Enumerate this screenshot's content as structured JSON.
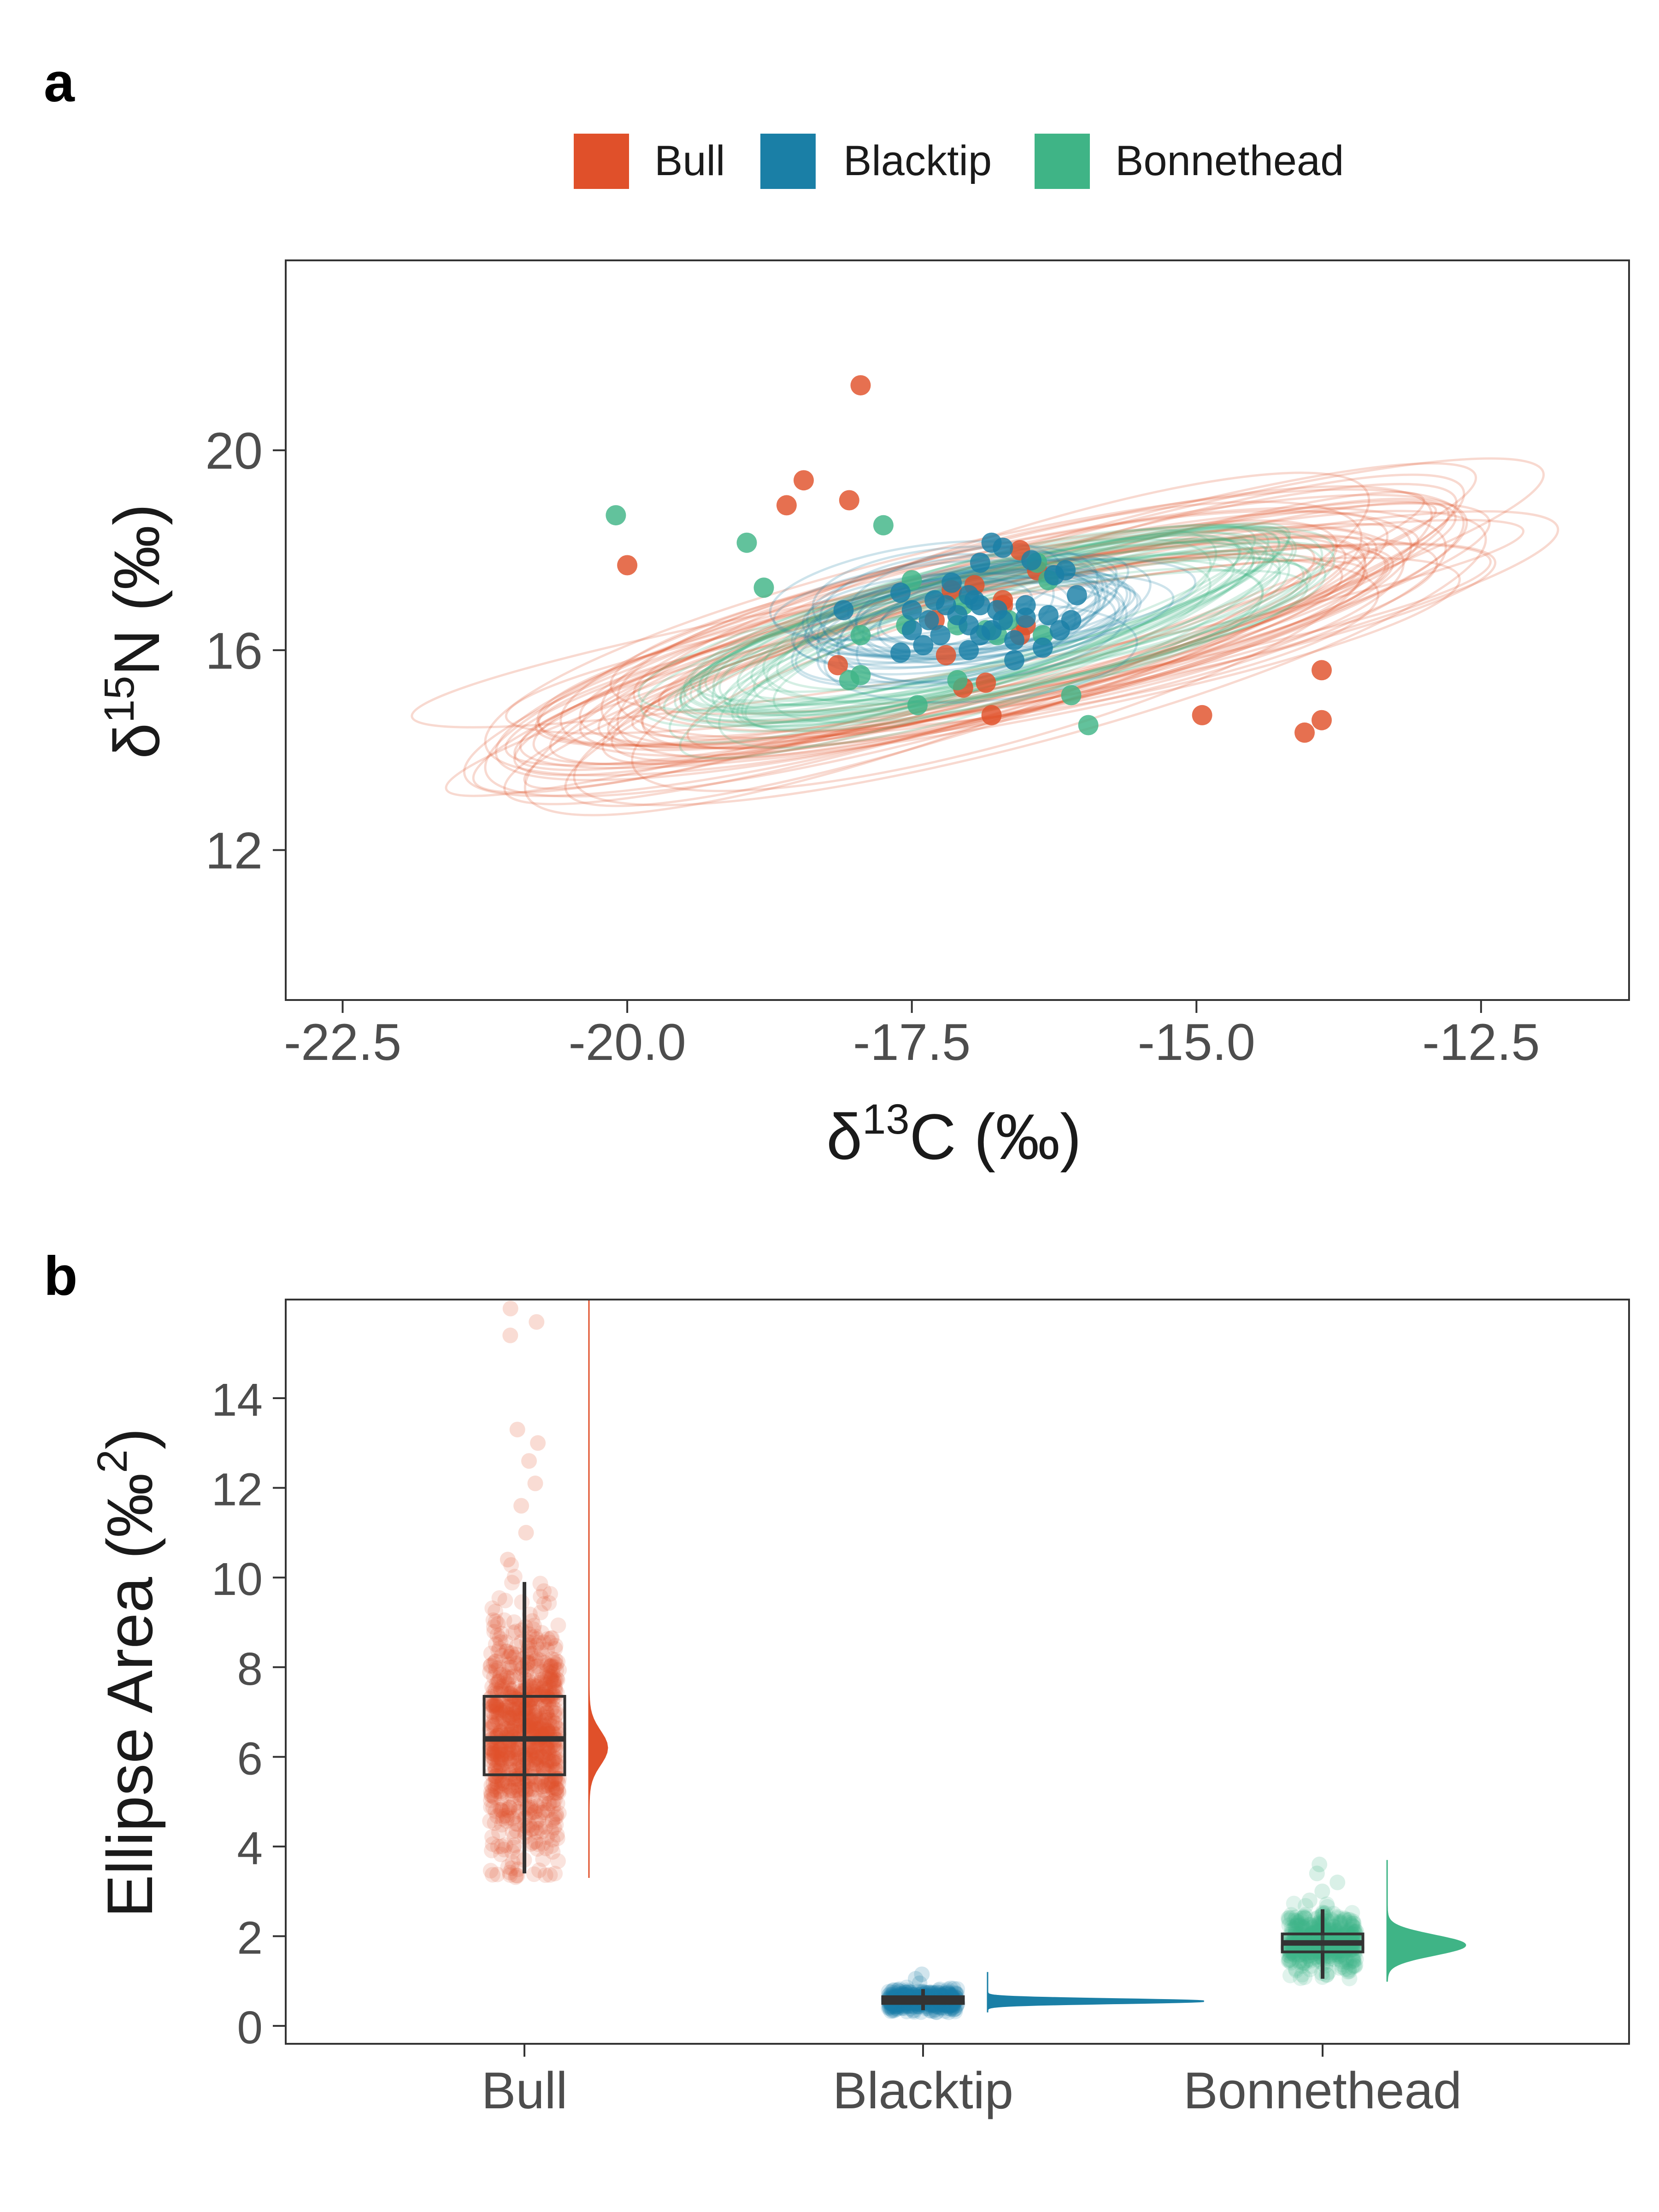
{
  "figure": {
    "panel_a_label": "a",
    "panel_b_label": "b"
  },
  "colors": {
    "Bull": "#E0502A",
    "Blacktip": "#1A7FA6",
    "Bonnethead": "#3FB486"
  },
  "legend": {
    "items": [
      "Bull",
      "Blacktip",
      "Bonnethead"
    ],
    "placement": "top-center"
  },
  "chart_data": [
    {
      "type": "scatter",
      "panel": "a",
      "title": "",
      "xlabel": {
        "main": "δ",
        "sup": "13",
        "rest": "C (‰)"
      },
      "ylabel": {
        "main": "δ",
        "sup": "15",
        "rest": "N (‰)"
      },
      "xlim": [
        -23.0,
        -11.2
      ],
      "ylim": [
        9.0,
        23.8
      ],
      "xticks": [
        -22.5,
        -20.0,
        -17.5,
        -15.0,
        -12.5
      ],
      "xtick_labels": [
        "-22.5",
        "-20.0",
        "-17.5",
        "-15.0",
        "-12.5"
      ],
      "yticks": [
        12,
        16,
        20
      ],
      "ytick_labels": [
        "12",
        "16",
        "20"
      ],
      "grid": false,
      "ellipse_summary": {
        "Bull": {
          "cx": -16.8,
          "cy": 16.2,
          "rx_range": [
            2.9,
            5.0
          ],
          "ry_range": [
            0.9,
            1.8
          ],
          "angle_deg": -14,
          "count": 40
        },
        "Blacktip": {
          "cx": -17.0,
          "cy": 16.7,
          "rx_range": [
            1.0,
            1.55
          ],
          "ry_range": [
            0.65,
            1.05
          ],
          "angle_deg": -8,
          "count": 30
        },
        "Bonnethead": {
          "cx": -16.8,
          "cy": 16.4,
          "rx_range": [
            2.2,
            2.9
          ],
          "ry_range": [
            0.9,
            1.3
          ],
          "angle_deg": -14,
          "count": 35
        }
      },
      "series": [
        {
          "name": "Bull",
          "points": [
            [
              -17.95,
              21.3
            ],
            [
              -18.45,
              19.4
            ],
            [
              -18.6,
              18.9
            ],
            [
              -18.05,
              19.0
            ],
            [
              -20.0,
              17.7
            ],
            [
              -18.15,
              15.7
            ],
            [
              -14.95,
              14.7
            ],
            [
              -14.05,
              14.35
            ],
            [
              -13.9,
              14.6
            ],
            [
              -13.9,
              15.6
            ],
            [
              -16.8,
              14.7
            ],
            [
              -17.05,
              15.25
            ],
            [
              -16.85,
              15.35
            ],
            [
              -17.2,
              15.9
            ],
            [
              -17.15,
              17.2
            ],
            [
              -16.95,
              17.3
            ],
            [
              -16.7,
              16.9
            ],
            [
              -16.5,
              16.5
            ],
            [
              -16.55,
              18.0
            ],
            [
              -16.4,
              17.6
            ],
            [
              -16.55,
              16.3
            ],
            [
              -16.7,
              17.0
            ],
            [
              -17.3,
              16.6
            ]
          ]
        },
        {
          "name": "Blacktip",
          "points": [
            [
              -18.1,
              16.8
            ],
            [
              -17.5,
              16.8
            ],
            [
              -17.35,
              16.6
            ],
            [
              -17.2,
              16.9
            ],
            [
              -17.1,
              16.7
            ],
            [
              -17.0,
              16.5
            ],
            [
              -16.9,
              16.9
            ],
            [
              -16.8,
              16.4
            ],
            [
              -16.75,
              16.8
            ],
            [
              -17.0,
              17.1
            ],
            [
              -17.25,
              16.3
            ],
            [
              -17.4,
              16.1
            ],
            [
              -17.0,
              16.0
            ],
            [
              -16.7,
              16.6
            ],
            [
              -16.5,
              16.9
            ],
            [
              -16.3,
              16.7
            ],
            [
              -16.2,
              16.4
            ],
            [
              -16.1,
              16.6
            ],
            [
              -16.05,
              17.1
            ],
            [
              -16.25,
              17.5
            ],
            [
              -16.45,
              17.8
            ],
            [
              -16.9,
              17.75
            ],
            [
              -16.8,
              18.15
            ],
            [
              -16.7,
              18.05
            ],
            [
              -17.15,
              17.35
            ],
            [
              -17.3,
              17.0
            ],
            [
              -17.5,
              16.4
            ],
            [
              -16.6,
              16.2
            ],
            [
              -16.35,
              16.05
            ],
            [
              -16.9,
              16.3
            ],
            [
              -16.6,
              15.8
            ],
            [
              -16.95,
              17.0
            ],
            [
              -17.6,
              15.95
            ],
            [
              -16.15,
              17.6
            ],
            [
              -17.6,
              17.15
            ],
            [
              -16.5,
              16.65
            ]
          ]
        },
        {
          "name": "Bonnethead",
          "points": [
            [
              -20.1,
              18.7
            ],
            [
              -18.95,
              18.15
            ],
            [
              -18.8,
              17.25
            ],
            [
              -17.75,
              18.5
            ],
            [
              -17.95,
              16.3
            ],
            [
              -17.95,
              15.5
            ],
            [
              -18.05,
              15.4
            ],
            [
              -17.45,
              14.9
            ],
            [
              -17.1,
              15.4
            ],
            [
              -16.1,
              15.1
            ],
            [
              -15.95,
              14.5
            ],
            [
              -16.4,
              17.75
            ],
            [
              -16.65,
              16.6
            ],
            [
              -16.85,
              16.4
            ],
            [
              -17.05,
              16.9
            ],
            [
              -17.5,
              17.4
            ],
            [
              -17.55,
              16.5
            ],
            [
              -16.3,
              17.4
            ],
            [
              -16.75,
              16.3
            ],
            [
              -17.1,
              16.5
            ],
            [
              -16.35,
              16.3
            ]
          ]
        }
      ]
    },
    {
      "type": "box",
      "panel": "b",
      "title": "",
      "xlabel": "",
      "ylabel": {
        "main": "Ellipse Area (‰",
        "sup": "2",
        "rest": ")"
      },
      "categories": [
        "Bull",
        "Blacktip",
        "Bonnethead"
      ],
      "ylim": [
        -0.4,
        16.2
      ],
      "yticks": [
        0,
        2,
        4,
        6,
        8,
        10,
        12,
        14
      ],
      "ytick_labels": [
        "0",
        "2",
        "4",
        "6",
        "8",
        "10",
        "12",
        "14"
      ],
      "grid": false,
      "series": [
        {
          "name": "Bull",
          "whisker_low": 3.4,
          "q1": 5.6,
          "median": 6.4,
          "q3": 7.35,
          "whisker_high": 9.9,
          "min": 3.3,
          "max": 16.2,
          "outliers": [
            10.4,
            11.0,
            11.6,
            12.1,
            12.6,
            13.0,
            13.3,
            15.4,
            15.7,
            16.0
          ],
          "density_peak": 6.2,
          "density_width": 0.38
        },
        {
          "name": "Blacktip",
          "whisker_low": 0.35,
          "q1": 0.5,
          "median": 0.57,
          "q3": 0.65,
          "whisker_high": 0.82,
          "min": 0.3,
          "max": 1.2,
          "outliers": [
            0.95,
            1.05,
            1.15
          ],
          "density_peak": 0.55,
          "density_width": 0.05
        },
        {
          "name": "Bonnethead",
          "whisker_low": 1.05,
          "q1": 1.65,
          "median": 1.85,
          "q3": 2.05,
          "whisker_high": 2.6,
          "min": 1.0,
          "max": 3.7,
          "outliers": [
            2.8,
            3.0,
            3.2,
            3.4,
            3.6
          ],
          "density_peak": 1.8,
          "density_width": 0.22
        }
      ]
    }
  ]
}
